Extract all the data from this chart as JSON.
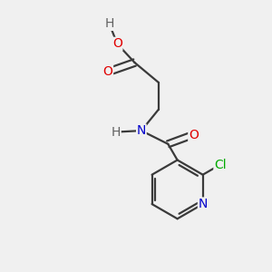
{
  "background_color": "#f0f0f0",
  "bond_color": "#3a3a3a",
  "atom_colors": {
    "O": "#e00000",
    "N": "#0000cc",
    "Cl": "#00aa00",
    "H": "#606060",
    "C": "#3a3a3a"
  },
  "figsize": [
    3.0,
    3.0
  ],
  "dpi": 100,
  "lw": 1.6,
  "fontsize": 10
}
